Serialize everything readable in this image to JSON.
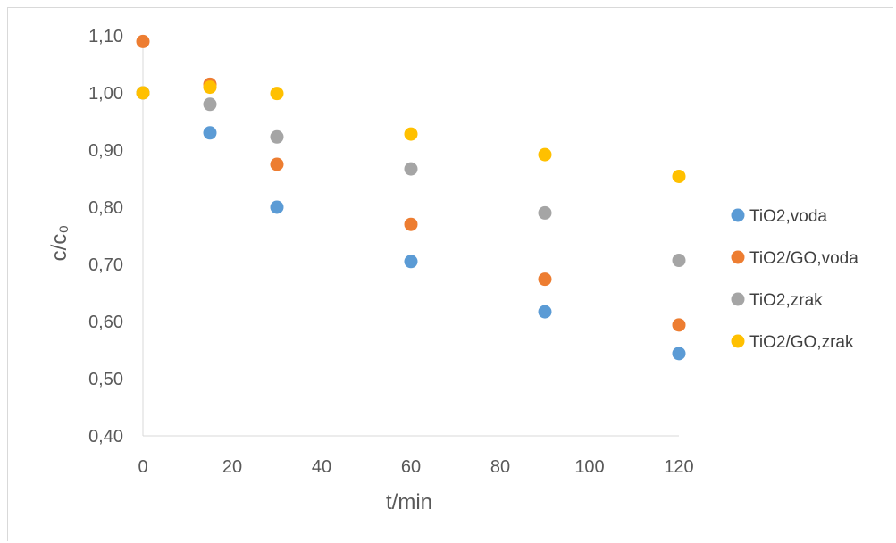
{
  "chart_data": {
    "type": "scatter",
    "xlabel": "t/min",
    "ylabel": "c/c₀",
    "xlim": [
      0,
      120
    ],
    "ylim": [
      0.4,
      1.1
    ],
    "xticks": [
      0,
      20,
      40,
      60,
      80,
      100,
      120
    ],
    "yticks": [
      0.4,
      0.5,
      0.6,
      0.7,
      0.8,
      0.9,
      1.0,
      1.1
    ],
    "xtick_labels": [
      "0",
      "20",
      "40",
      "60",
      "80",
      "100",
      "120"
    ],
    "ytick_labels": [
      "0,40",
      "0,50",
      "0,60",
      "0,70",
      "0,80",
      "0,90",
      "1,00",
      "1,10"
    ],
    "grid": false,
    "legend_position": "right",
    "series": [
      {
        "name": "TiO2,voda",
        "color": "#5b9bd5",
        "points": [
          [
            0,
            1.0
          ],
          [
            15,
            0.93
          ],
          [
            30,
            0.8
          ],
          [
            60,
            0.705
          ],
          [
            90,
            0.617
          ],
          [
            120,
            0.544
          ]
        ]
      },
      {
        "name": "TiO2/GO,voda",
        "color": "#ed7d31",
        "points": [
          [
            0,
            1.09
          ],
          [
            15,
            1.015
          ],
          [
            30,
            0.875
          ],
          [
            60,
            0.77
          ],
          [
            90,
            0.674
          ],
          [
            120,
            0.594
          ]
        ]
      },
      {
        "name": "TiO2,zrak",
        "color": "#a5a5a5",
        "points": [
          [
            0,
            1.0
          ],
          [
            15,
            0.98
          ],
          [
            30,
            0.923
          ],
          [
            60,
            0.867
          ],
          [
            90,
            0.79
          ],
          [
            120,
            0.707
          ]
        ]
      },
      {
        "name": "TiO2/GO,zrak",
        "color": "#ffc000",
        "points": [
          [
            0,
            1.0
          ],
          [
            15,
            1.01
          ],
          [
            30,
            0.999
          ],
          [
            60,
            0.928
          ],
          [
            90,
            0.892
          ],
          [
            120,
            0.854
          ]
        ]
      }
    ]
  }
}
